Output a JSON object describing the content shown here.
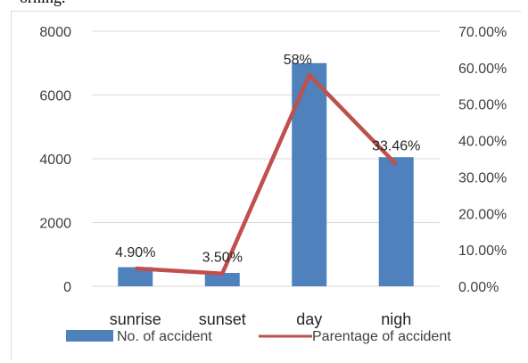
{
  "fragment_text": "orning.",
  "chart_data": {
    "type": "bar",
    "categories": [
      "sunrise",
      "sunset",
      "day",
      "nigh"
    ],
    "series": [
      {
        "name": "No. of accident",
        "type": "bar",
        "axis": "left",
        "values": [
          600,
          420,
          7000,
          4050
        ],
        "color": "#4f81bd"
      },
      {
        "name": "Parentage of accident",
        "type": "line",
        "axis": "right",
        "values": [
          4.9,
          3.5,
          58.0,
          33.46
        ],
        "color": "#c0504d",
        "data_labels": [
          "4.90%",
          "3.50%",
          "58%",
          "33.46%"
        ]
      }
    ],
    "y_left": {
      "ylim": [
        0,
        8000
      ],
      "ticks": [
        "0",
        "2000",
        "4000",
        "6000",
        "8000"
      ]
    },
    "y_right": {
      "ylim": [
        0,
        70
      ],
      "ticks": [
        "0.00%",
        "10.00%",
        "20.00%",
        "30.00%",
        "40.00%",
        "50.00%",
        "60.00%",
        "70.00%"
      ]
    },
    "gridlines": true,
    "legend_position": "bottom"
  }
}
